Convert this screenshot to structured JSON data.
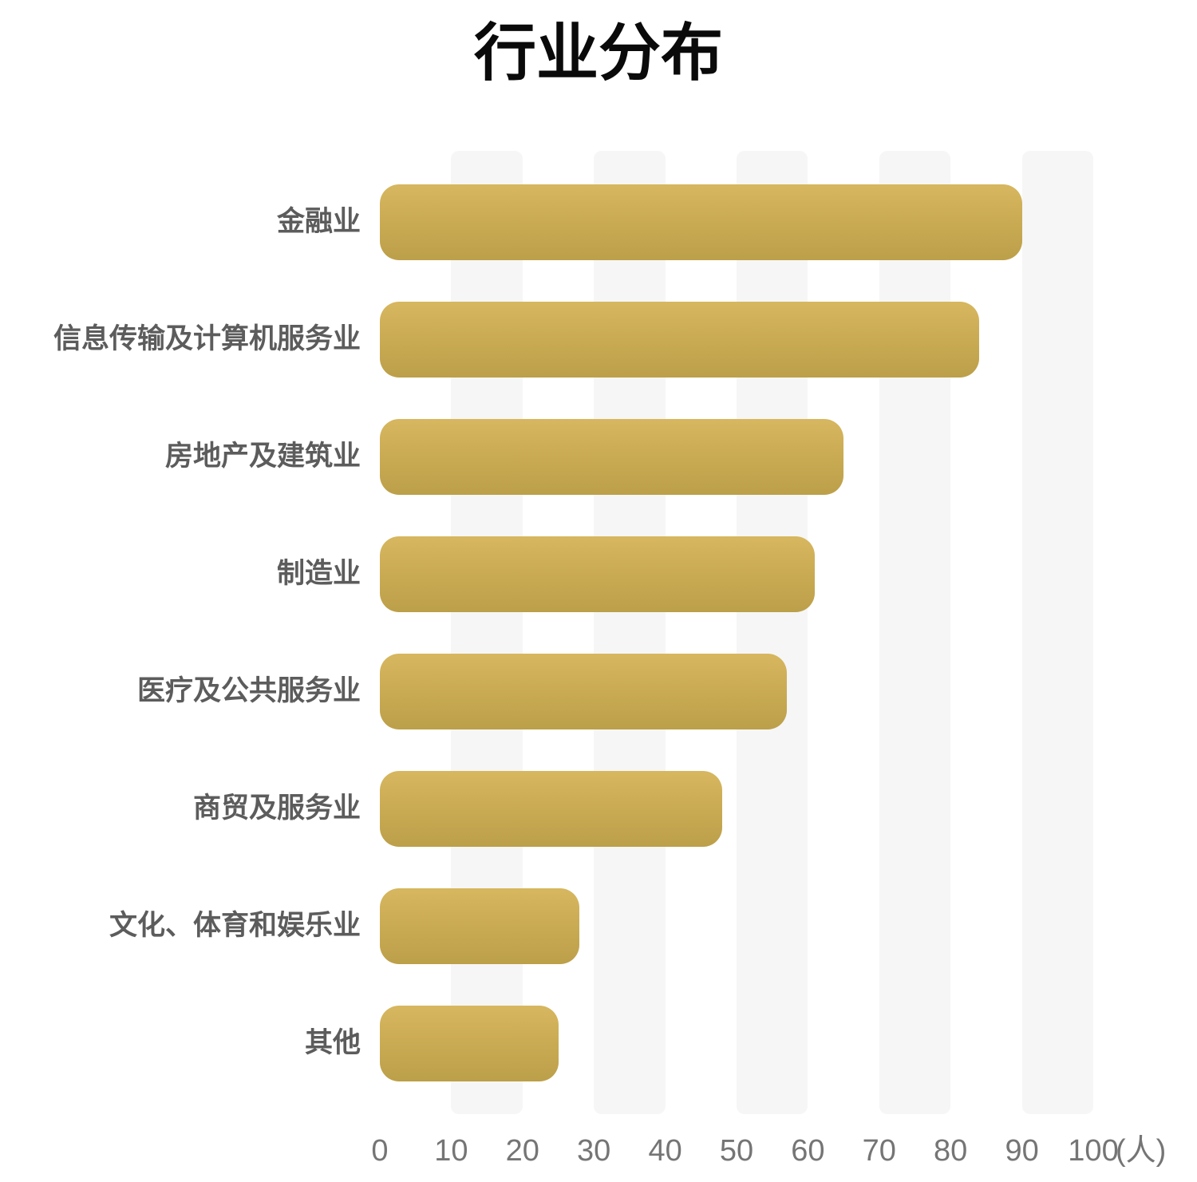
{
  "chart_data": {
    "type": "bar",
    "orientation": "horizontal",
    "title": "行业分布",
    "categories": [
      "金融业",
      "信息传输及计算机服务业",
      "房地产及建筑业",
      "制造业",
      "医疗及公共服务业",
      "商贸及服务业",
      "文化、体育和娱乐业",
      "其他"
    ],
    "values": [
      90,
      84,
      65,
      61,
      57,
      48,
      28,
      25
    ],
    "xlabel": "",
    "ylabel": "",
    "x_unit_label": "(人)",
    "x_ticks": [
      0,
      10,
      20,
      30,
      40,
      50,
      60,
      70,
      80,
      90,
      100
    ],
    "xlim": [
      0,
      100
    ],
    "grid": "alternating vertical split-area bands",
    "band_starts": [
      10,
      30,
      50,
      70,
      90
    ],
    "band_width_units": 10,
    "legend": "none",
    "colors": {
      "bar_gradient_top": "#d7b75f",
      "bar_gradient_bottom": "#bc9f49",
      "band": "#f6f6f6",
      "title_text": "#0a0a0a",
      "category_text": "#5c5c5c",
      "tick_text": "#757575",
      "background": "#ffffff"
    }
  }
}
